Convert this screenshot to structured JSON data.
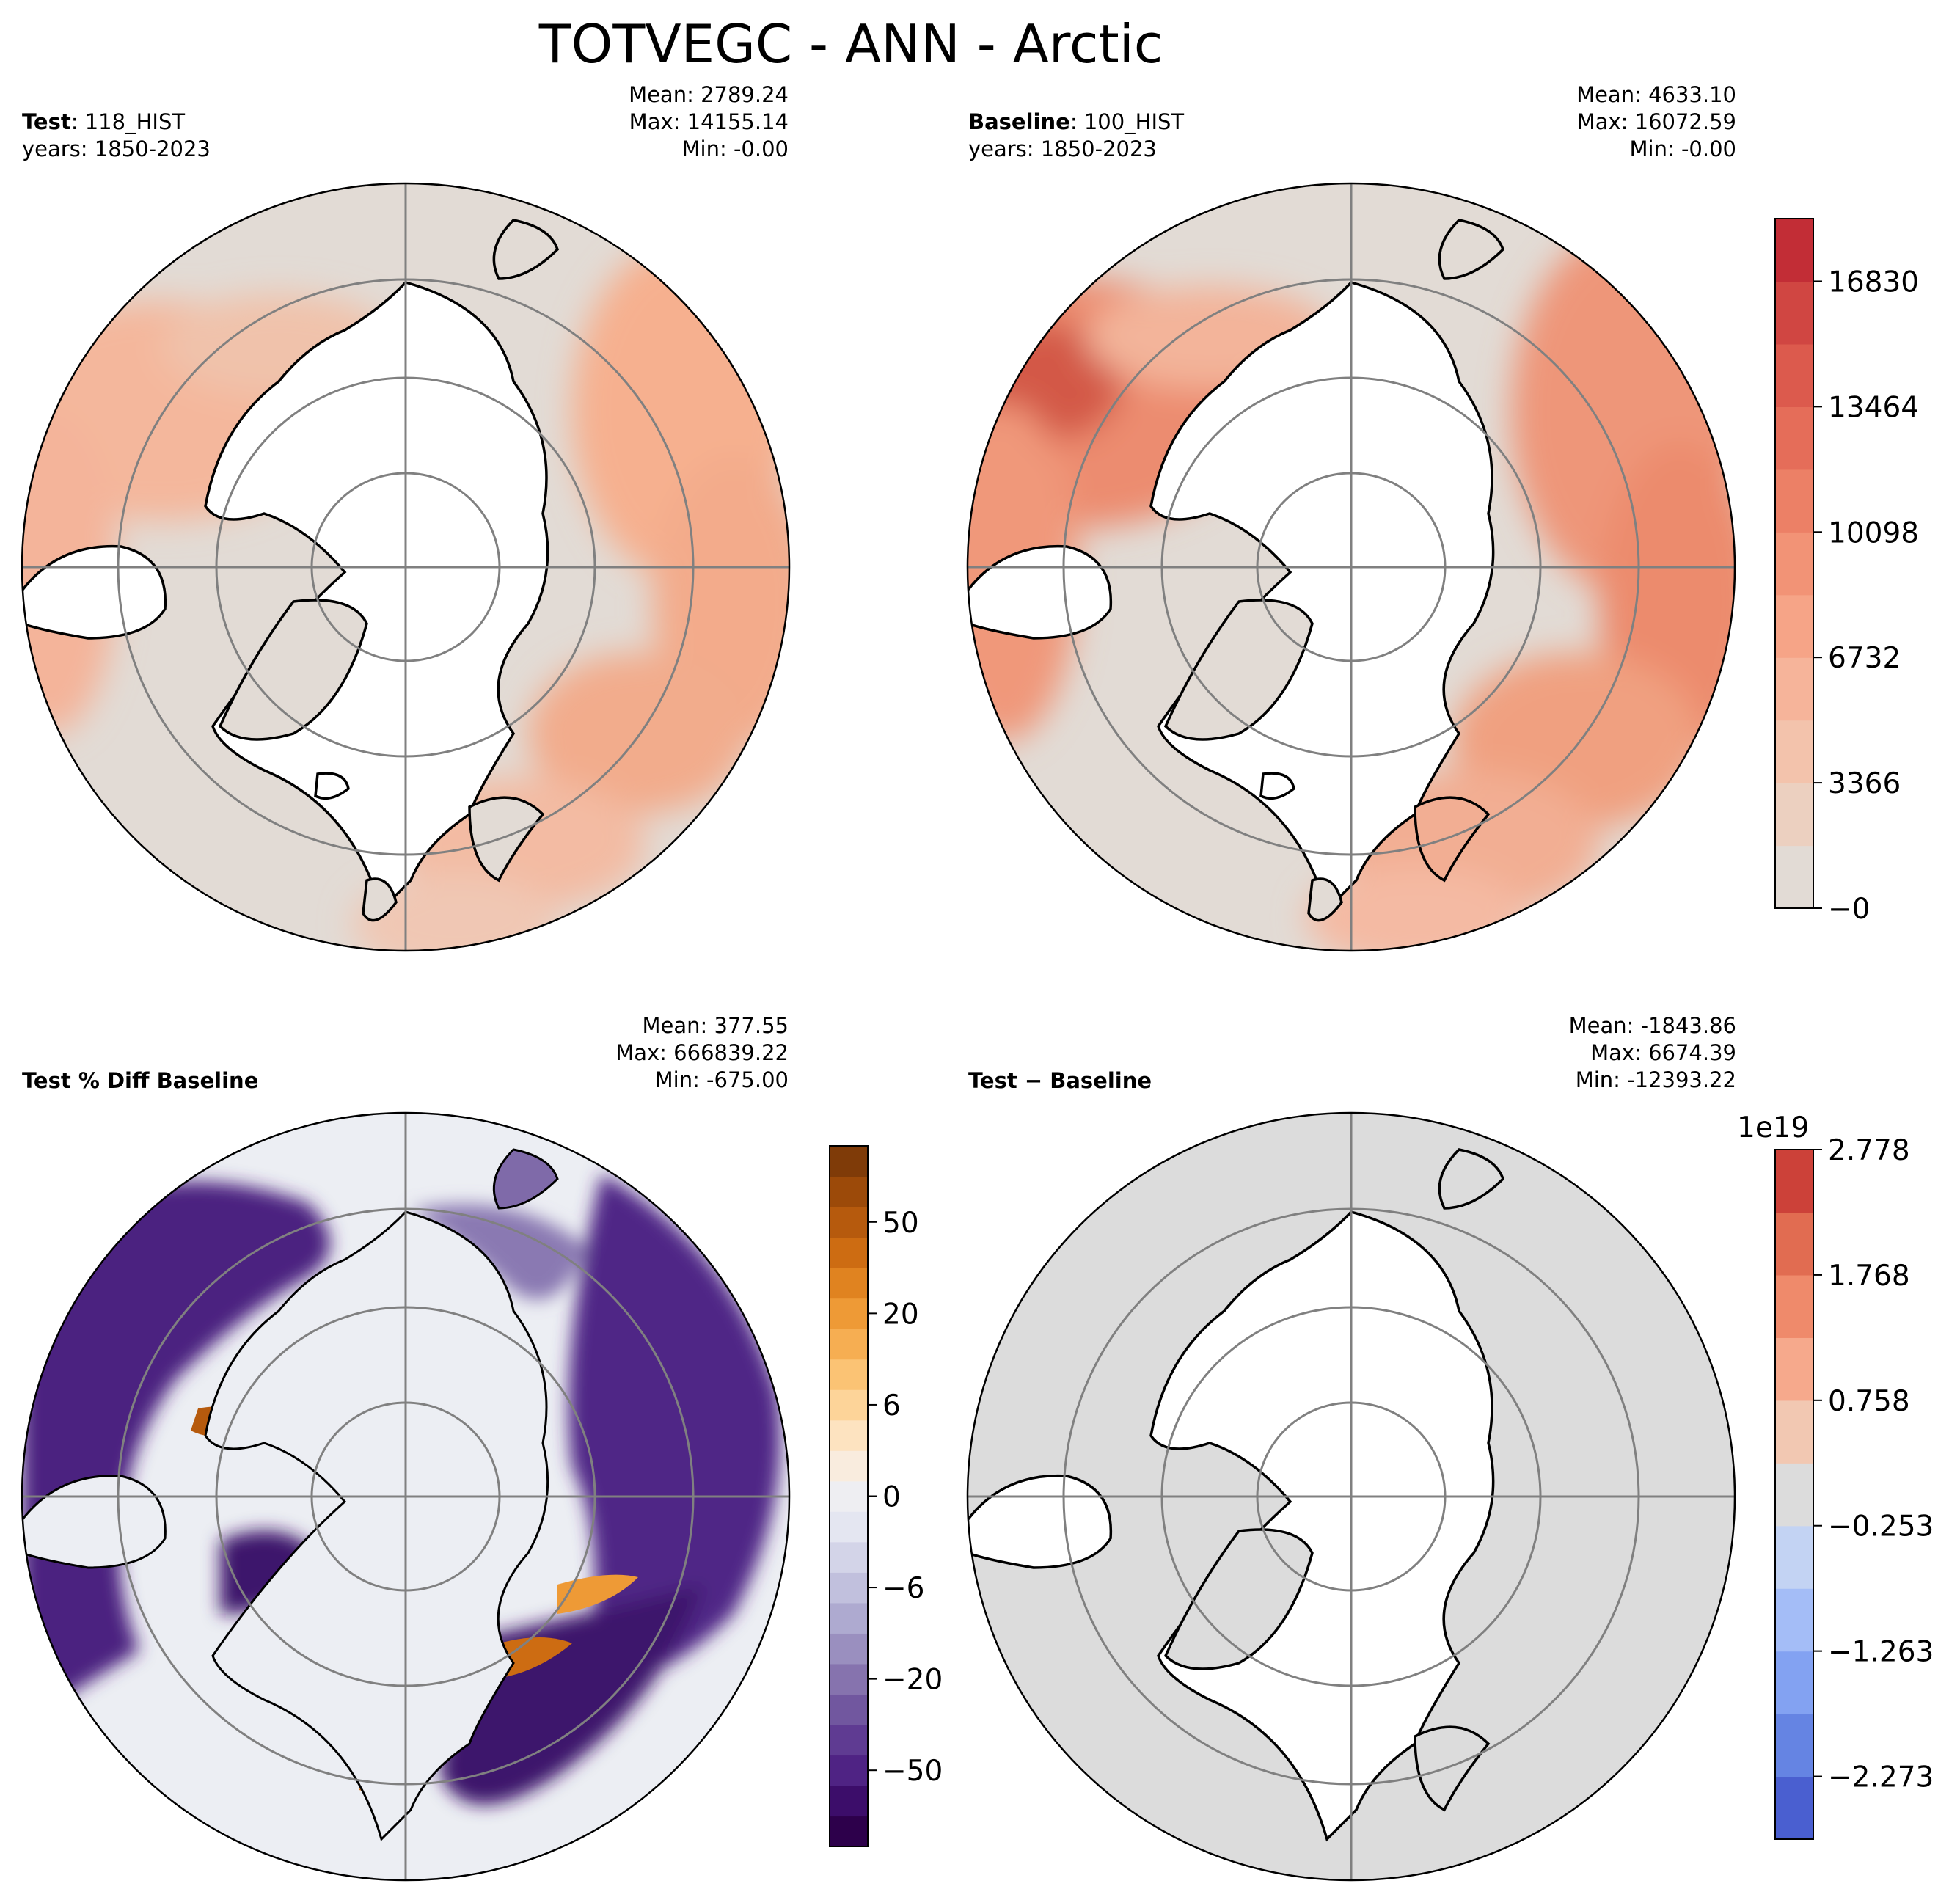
{
  "title": "TOTVEGC - ANN - Arctic",
  "panels": {
    "test": {
      "label_bold": "Test",
      "sep": ": ",
      "case": "118_HIST",
      "years": "years: 1850-2023",
      "mean": "Mean: 2789.24",
      "max": "Max: 14155.14",
      "min": "Min: -0.00"
    },
    "baseline": {
      "label_bold": "Baseline",
      "sep": ": ",
      "case": "100_HIST",
      "years": "years: 1850-2023",
      "mean": "Mean: 4633.10",
      "max": "Max: 16072.59",
      "min": "Min: -0.00"
    },
    "pct_diff": {
      "label": "Test % Diff Baseline",
      "mean": "Mean: 377.55",
      "max": "Max: 666839.22",
      "min": "Min: -675.00"
    },
    "diff": {
      "label": "Test − Baseline",
      "mean": "Mean: -1843.86",
      "max": "Max: 6674.39",
      "min": "Min: -12393.22"
    }
  },
  "chart_data": [
    {
      "type": "heatmap",
      "projection": "north-polar-stereographic",
      "title": "Test: 118_HIST",
      "colormap": "reds",
      "value_range": [
        0,
        14155.14
      ]
    },
    {
      "type": "heatmap",
      "projection": "north-polar-stereographic",
      "title": "Baseline: 100_HIST",
      "colormap": "reds",
      "value_range": [
        0,
        16072.59
      ],
      "colorbar": {
        "ticks": [
          "−0",
          "3366",
          "6732",
          "10098",
          "13464",
          "16830"
        ],
        "levels": [
          0,
          1683,
          3366,
          5049,
          6732,
          8415,
          10098,
          11781,
          13464,
          15147,
          16830,
          18513
        ],
        "colors": [
          "#e2dbd5",
          "#ecd0c0",
          "#f3c3ac",
          "#f6b49a",
          "#f6a487",
          "#f29376",
          "#ec8066",
          "#e56d59",
          "#dc5a4d",
          "#d04642",
          "#c22d36"
        ]
      }
    },
    {
      "type": "heatmap",
      "projection": "north-polar-stereographic",
      "title": "Test % Diff Baseline",
      "colormap": "purple-orange",
      "value_range": [
        -675.0,
        666839.22
      ],
      "colorbar": {
        "ticks": [
          "−50",
          "−20",
          "−6",
          "0",
          "6",
          "20",
          "50"
        ],
        "colors": [
          "#2d004b",
          "#3c0d6a",
          "#4f2384",
          "#5f3b92",
          "#71579f",
          "#8673ae",
          "#9a8fbf",
          "#aeaad0",
          "#c1c0dd",
          "#d3d4e8",
          "#e4e6f1",
          "#eeeef2",
          "#f9ecde",
          "#fde3c0",
          "#fdd499",
          "#fbc374",
          "#f6ae52",
          "#ee9a36",
          "#e08320",
          "#cd6c12",
          "#b65a0d",
          "#9c4a09",
          "#7f3b08"
        ]
      }
    },
    {
      "type": "heatmap",
      "projection": "north-polar-stereographic",
      "title": "Test − Baseline",
      "colormap": "coolwarm",
      "value_range": [
        -12393.22,
        6674.39
      ],
      "colorbar": {
        "exponent": "1e19",
        "ticks": [
          "−2.273",
          "−1.263",
          "−0.253",
          "0.758",
          "1.768",
          "2.778"
        ],
        "colors": [
          "#4a5fd0",
          "#6584e3",
          "#83a2f2",
          "#a4bdf7",
          "#c3d3f3",
          "#dcdcdc",
          "#f2c8b2",
          "#f6a98c",
          "#ef8a6b",
          "#e16c51",
          "#cc4139"
        ]
      }
    }
  ]
}
